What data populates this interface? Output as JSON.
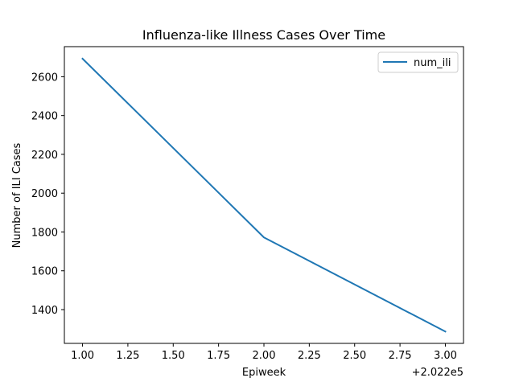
{
  "chart_data": {
    "type": "line",
    "title": "Influenza-like Illness Cases Over Time",
    "xlabel": "Epiweek",
    "ylabel": "Number of ILI Cases",
    "x_offset_label": "+2.022e5",
    "x": [
      1.0,
      2.0,
      3.0
    ],
    "series": [
      {
        "name": "num_ili",
        "values": [
          2693,
          1772,
          1287
        ],
        "color": "#1f77b4"
      }
    ],
    "xlim": [
      0.9,
      3.1
    ],
    "ylim": [
      1226,
      2755
    ],
    "x_ticks": [
      1.0,
      1.25,
      1.5,
      1.75,
      2.0,
      2.25,
      2.5,
      2.75,
      3.0
    ],
    "x_tick_labels": [
      "1.00",
      "1.25",
      "1.50",
      "1.75",
      "2.00",
      "2.25",
      "2.50",
      "2.75",
      "3.00"
    ],
    "y_ticks": [
      1400,
      1600,
      1800,
      2000,
      2200,
      2400,
      2600
    ],
    "y_tick_labels": [
      "1400",
      "1600",
      "1800",
      "2000",
      "2200",
      "2400",
      "2600"
    ],
    "grid": false,
    "legend_position": "top-right"
  }
}
